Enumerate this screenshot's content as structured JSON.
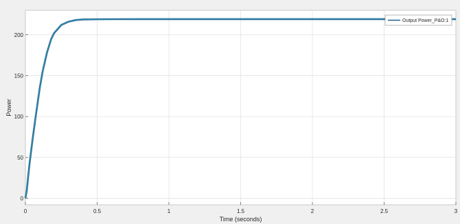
{
  "chart_data": {
    "type": "line",
    "title": "",
    "xlabel": "Time (seconds)",
    "ylabel": "Power",
    "xlim": [
      0,
      3
    ],
    "ylim": [
      -8,
      230
    ],
    "xticks": [
      0,
      0.5,
      1,
      1.5,
      2,
      2.5,
      3
    ],
    "xtick_labels": [
      "0",
      "0.5",
      "1",
      "1.5",
      "2",
      "2.5",
      "3"
    ],
    "yticks": [
      0,
      50,
      100,
      150,
      200
    ],
    "ytick_labels": [
      "0",
      "50",
      "100",
      "150",
      "200"
    ],
    "grid": true,
    "legend_position": "top-right",
    "series": [
      {
        "name": "Output Power_P&O:1",
        "color": "#1f5f8b",
        "x": [
          0,
          0.01,
          0.02,
          0.03,
          0.05,
          0.07,
          0.1,
          0.12,
          0.15,
          0.18,
          0.2,
          0.25,
          0.3,
          0.35,
          0.4,
          0.5,
          0.6,
          0.8,
          1.0,
          1.5,
          2.0,
          2.5,
          3.0
        ],
        "y": [
          0,
          10,
          28,
          44,
          72,
          98,
          135,
          155,
          178,
          195,
          202,
          212,
          216,
          218,
          218.7,
          219,
          219.1,
          219.2,
          219.2,
          219.2,
          219.2,
          219.2,
          219.2
        ]
      }
    ]
  }
}
